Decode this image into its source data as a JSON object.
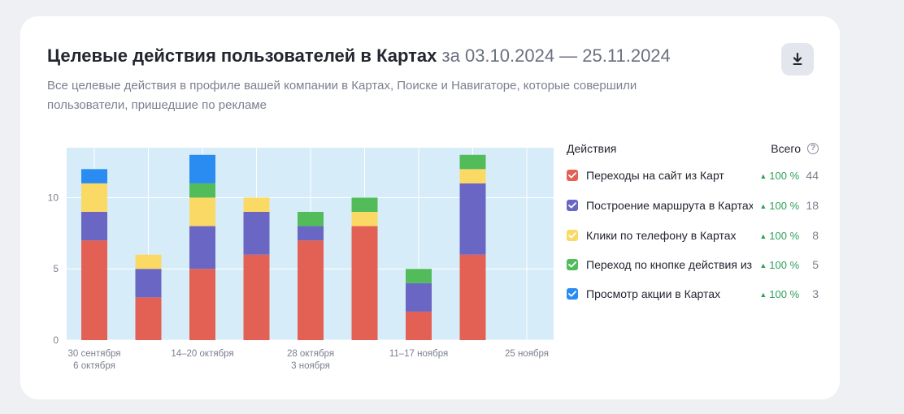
{
  "header": {
    "title": "Целевые действия пользователей в Картах",
    "period": "за 03.10.2024 — 25.11.2024",
    "subtitle": "Все целевые действия в профиле вашей компании в Картах, Поиске и Навигаторе, которые совершили пользователи, пришедшие по рекламе",
    "download_icon": "download-icon"
  },
  "legend": {
    "actions_header": "Действия",
    "total_header": "Всего",
    "help_icon": "question-circle-icon",
    "items": [
      {
        "label": "Переходы на сайт из Карт",
        "change": "100 %",
        "total": "44",
        "color": "#e26154"
      },
      {
        "label": "Построение маршрута в Картах",
        "change": "100 %",
        "total": "18",
        "color": "#6a66c4"
      },
      {
        "label": "Клики по телефону в Картах",
        "change": "100 %",
        "total": "8",
        "color": "#fbd965"
      },
      {
        "label": "Переход по кнопке действия из Карт",
        "change": "100 %",
        "total": "5",
        "color": "#52bc5a"
      },
      {
        "label": "Просмотр акции в Картах",
        "change": "100 %",
        "total": "3",
        "color": "#2a8cf0"
      }
    ]
  },
  "chart_data": {
    "type": "bar",
    "stacked": true,
    "x_tick_labels": [
      {
        "line1": "30 сентября",
        "line2": "6 октября"
      },
      {
        "line1": "14–20 октября",
        "line2": ""
      },
      {
        "line1": "28 октября",
        "line2": "3 ноября"
      },
      {
        "line1": "11–17 ноября",
        "line2": ""
      },
      {
        "line1": "25 ноября",
        "line2": ""
      }
    ],
    "y_ticks": [
      0,
      5,
      10
    ],
    "ylim": [
      0,
      13.5
    ],
    "grid": true,
    "series": [
      {
        "name": "Переходы на сайт из Карт",
        "color": "#e26154",
        "values": [
          7,
          3,
          5,
          6,
          7,
          8,
          2,
          6
        ]
      },
      {
        "name": "Построение маршрута в Картах",
        "color": "#6a66c4",
        "values": [
          2,
          2,
          3,
          3,
          1,
          0,
          2,
          5
        ]
      },
      {
        "name": "Клики по телефону в Картах",
        "color": "#fbd965",
        "values": [
          2,
          1,
          2,
          1,
          0,
          1,
          0,
          1
        ]
      },
      {
        "name": "Переход по кнопке действия из Карт",
        "color": "#52bc5a",
        "values": [
          0,
          0,
          1,
          0,
          1,
          1,
          1,
          1
        ]
      },
      {
        "name": "Просмотр акции в Картах",
        "color": "#2a8cf0",
        "values": [
          1,
          0,
          2,
          0,
          0,
          0,
          0,
          0
        ]
      }
    ],
    "colors": {
      "plot_background": "#d6edf9",
      "gridline": "#ffffff",
      "tick_text": "#7b8090"
    }
  }
}
